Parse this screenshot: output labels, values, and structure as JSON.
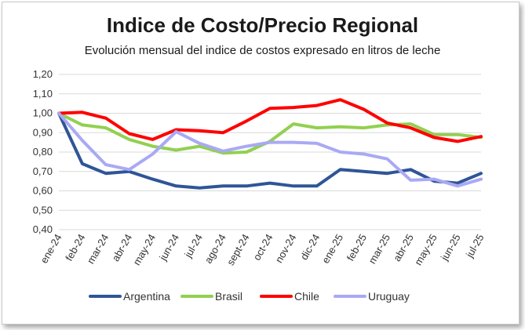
{
  "chart_data": {
    "type": "line",
    "title": "Indice de Costo/Precio Regional",
    "subtitle": "Evolución mensual del indice de costos expresado en litros de leche",
    "xlabel": "",
    "ylabel": "",
    "ylim": [
      0.4,
      1.2
    ],
    "yticks": [
      "0,40",
      "0,50",
      "0,60",
      "0,70",
      "0,80",
      "0,90",
      "1,00",
      "1,10",
      "1,20"
    ],
    "grid": true,
    "legend_position": "bottom",
    "categories": [
      "ene-24",
      "feb-24",
      "mar-24",
      "abr-24",
      "may-24",
      "jun-24",
      "jul-24",
      "ago-24",
      "sept-24",
      "oct-24",
      "nov-24",
      "dic-24",
      "ene-25",
      "feb-25",
      "mar-25",
      "abr-25",
      "may-25",
      "jun-25",
      "jul-25"
    ],
    "series": [
      {
        "name": "Argentina",
        "color": "#2f5597",
        "values": [
          1.0,
          0.74,
          0.69,
          0.7,
          0.66,
          0.625,
          0.615,
          0.625,
          0.625,
          0.64,
          0.625,
          0.625,
          0.71,
          0.7,
          0.69,
          0.71,
          0.65,
          0.64,
          0.69
        ]
      },
      {
        "name": "Brasil",
        "color": "#92d050",
        "values": [
          1.0,
          0.94,
          0.925,
          0.865,
          0.83,
          0.81,
          0.83,
          0.795,
          0.8,
          0.855,
          0.945,
          0.925,
          0.93,
          0.925,
          0.94,
          0.945,
          0.89,
          0.89,
          0.875
        ]
      },
      {
        "name": "Chile",
        "color": "#ff0000",
        "values": [
          1.0,
          1.005,
          0.975,
          0.895,
          0.865,
          0.915,
          0.91,
          0.9,
          0.96,
          1.025,
          1.03,
          1.04,
          1.07,
          1.02,
          0.95,
          0.925,
          0.875,
          0.855,
          0.88
        ]
      },
      {
        "name": "Uruguay",
        "color": "#a9a9f5",
        "values": [
          1.0,
          0.86,
          0.735,
          0.71,
          0.79,
          0.905,
          0.845,
          0.805,
          0.83,
          0.85,
          0.85,
          0.845,
          0.8,
          0.79,
          0.765,
          0.655,
          0.66,
          0.625,
          0.66
        ]
      }
    ]
  }
}
